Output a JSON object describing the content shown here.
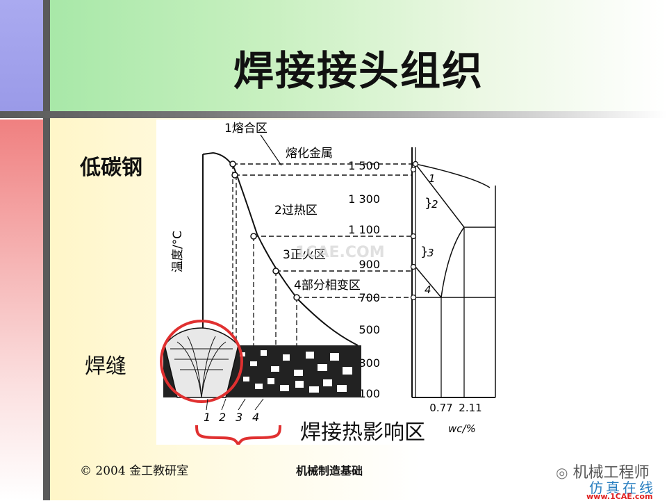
{
  "title": "焊接接头组织",
  "labels": {
    "low_carbon_steel": "低碳钢",
    "weld": "焊缝",
    "haz": "焊接热影响区"
  },
  "diagram": {
    "y_axis_label": "温度/°C",
    "zones": [
      {
        "number": "1",
        "name": "熔合区",
        "display": "1熔合区"
      },
      {
        "number": "",
        "name": "熔化金属",
        "display": "熔化金属"
      },
      {
        "number": "2",
        "name": "过热区",
        "display": "2过热区"
      },
      {
        "number": "3",
        "name": "正火区",
        "display": "3正火区"
      },
      {
        "number": "4",
        "name": "部分相变区",
        "display": "4部分相变区"
      }
    ],
    "temperature_ticks": [
      "1 500",
      "1 300",
      "1 100",
      "900",
      "700",
      "500",
      "300",
      "100"
    ],
    "carbon_axis_ticks": [
      "0.77",
      "2.11"
    ],
    "carbon_axis_label": "wc/%",
    "bracket_labels": [
      "1",
      "2",
      "3",
      "4"
    ],
    "zone_numbers_bottom": [
      "1",
      "2",
      "3",
      "4"
    ],
    "watermark_center": "1CAE.COM"
  },
  "footer": {
    "copyright": "© 2004 金工教研室",
    "course": "机械制造基础"
  },
  "watermark": {
    "logo_text": "机械工程师",
    "sub_text": "仿真在线",
    "url": "www.1CAE.com"
  },
  "colors": {
    "circle_highlight": "#e03030",
    "bracket": "#e03030",
    "watermark_url": "#e02020",
    "watermark_sub": "#2a7fc0"
  }
}
